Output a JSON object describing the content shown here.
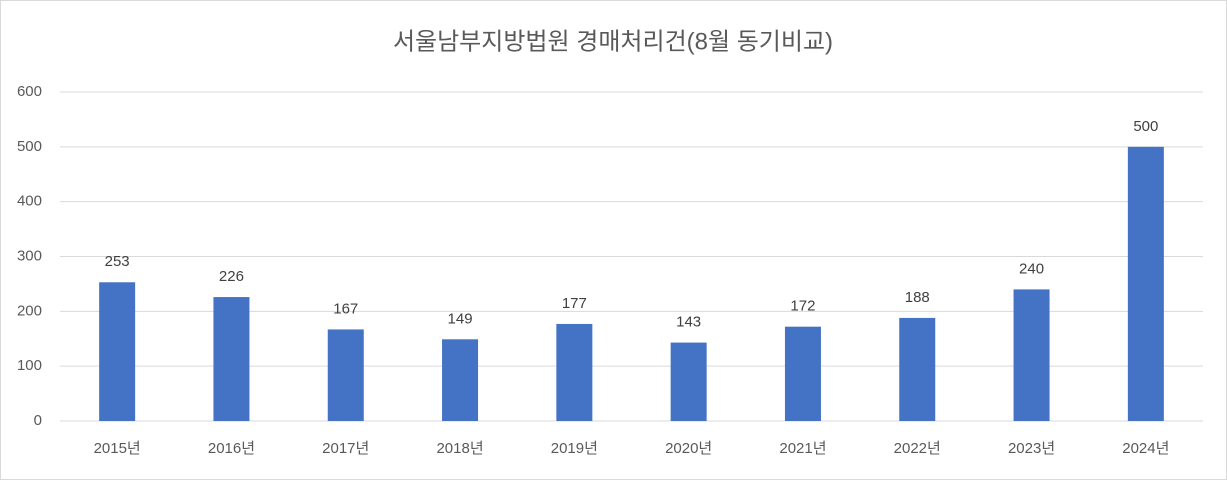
{
  "chart_data": {
    "type": "bar",
    "title": "서울남부지방법원 경매처리건(8월 동기비교)",
    "categories": [
      "2015년",
      "2016년",
      "2017년",
      "2018년",
      "2019년",
      "2020년",
      "2021년",
      "2022년",
      "2023년",
      "2024년"
    ],
    "values": [
      253,
      226,
      167,
      149,
      177,
      143,
      172,
      188,
      240,
      500
    ],
    "color": "#4472c4",
    "ylim": [
      0,
      600
    ],
    "yticks": [
      0,
      100,
      200,
      300,
      400,
      500,
      600
    ],
    "grid": true
  }
}
